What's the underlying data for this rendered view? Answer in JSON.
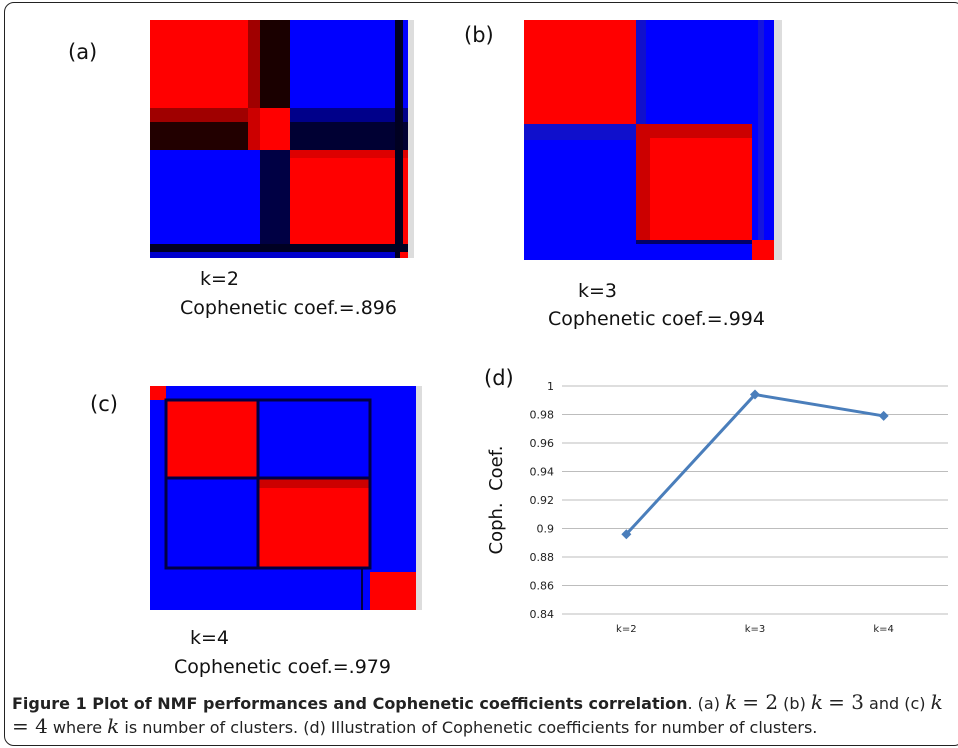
{
  "panels": {
    "a": {
      "label": "(a)",
      "k": "k=2",
      "coef": "Cophenetic coef.=.896"
    },
    "b": {
      "label": "(b)",
      "k": "k=3",
      "coef": "Cophenetic coef.=.994"
    },
    "c": {
      "label": "(c)",
      "k": "k=4",
      "coef": "Cophenetic coef.=.979"
    },
    "d": {
      "label": "(d)"
    }
  },
  "colors": {
    "red": "#ff0000",
    "blue": "#0000ff",
    "dark": "#1a0000",
    "line": "#4a7ebb"
  },
  "chart_data": {
    "type": "line",
    "categories": [
      "k=2",
      "k=3",
      "k=4"
    ],
    "values": [
      0.896,
      0.994,
      0.979
    ],
    "ylabel": "Coph.  Coef.",
    "ylim": [
      0.84,
      1.0
    ],
    "yticks": [
      "0.84",
      "0.86",
      "0.88",
      "0.9",
      "0.92",
      "0.94",
      "0.96",
      "0.98",
      "1"
    ],
    "grid": true
  },
  "caption": {
    "title": "Figure 1 Plot of NMF performances and Cophenetic coefficients correlation",
    "t1": ". (a) ",
    "k_eq_2": "= 2",
    "t2": " (b) ",
    "k_eq_3": "= 3",
    "t3": " and (c) ",
    "k_eq_4": "= 4",
    "t4": " where ",
    "t5": " is number of clusters. (d) Illustration of Cophenetic coefficients for number of clusters.",
    "k": "k"
  }
}
